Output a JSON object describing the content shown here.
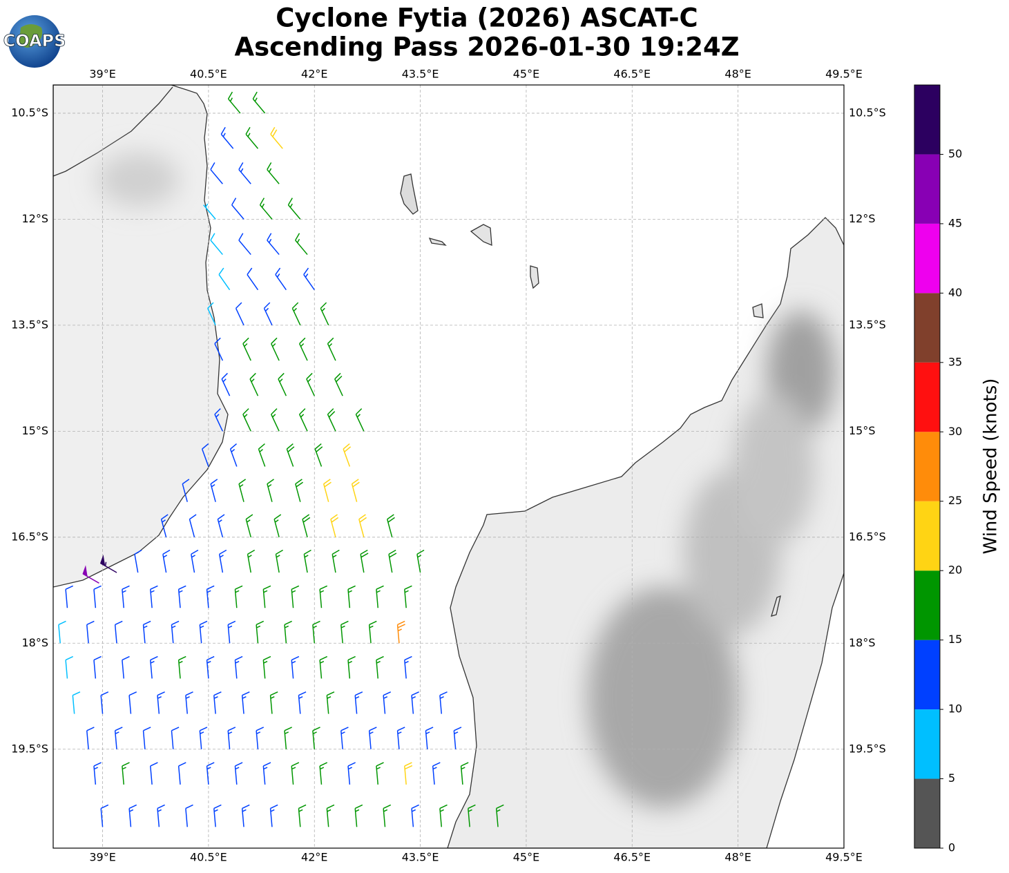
{
  "title_lines": [
    "Cyclone Fytia (2026) ASCAT-C",
    "Ascending Pass 2026-01-30 19:24Z"
  ],
  "logo_text": "COAPS",
  "map": {
    "xlim": [
      38.3,
      49.5
    ],
    "ylim": [
      -20.9,
      -10.1
    ],
    "grid": true,
    "xticks": [
      {
        "value": 39,
        "label": "39°E"
      },
      {
        "value": 40.5,
        "label": "40.5°E"
      },
      {
        "value": 42,
        "label": "42°E"
      },
      {
        "value": 43.5,
        "label": "43.5°E"
      },
      {
        "value": 45,
        "label": "45°E"
      },
      {
        "value": 46.5,
        "label": "46.5°E"
      },
      {
        "value": 48,
        "label": "48°E"
      },
      {
        "value": 49.5,
        "label": "49.5°E"
      }
    ],
    "yticks": [
      {
        "value": -10.5,
        "label": "10.5°S"
      },
      {
        "value": -12,
        "label": "12°S"
      },
      {
        "value": -13.5,
        "label": "13.5°S"
      },
      {
        "value": -15,
        "label": "15°S"
      },
      {
        "value": -16.5,
        "label": "16.5°S"
      },
      {
        "value": -18,
        "label": "18°S"
      },
      {
        "value": -19.5,
        "label": "19.5°S"
      }
    ],
    "wind_barbs": [
      [
        40.95,
        -10.5,
        17,
        320
      ],
      [
        41.3,
        -10.5,
        17,
        320
      ],
      [
        40.85,
        -11.0,
        13,
        320
      ],
      [
        41.2,
        -11.0,
        16,
        320
      ],
      [
        41.55,
        -11.0,
        21,
        320
      ],
      [
        40.7,
        -11.5,
        12,
        320
      ],
      [
        41.1,
        -11.5,
        14,
        320
      ],
      [
        41.5,
        -11.5,
        17,
        320
      ],
      [
        40.6,
        -12.0,
        7,
        320
      ],
      [
        41.0,
        -12.0,
        12,
        320
      ],
      [
        41.4,
        -12.0,
        16,
        320
      ],
      [
        41.8,
        -12.0,
        17,
        320
      ],
      [
        40.7,
        -12.5,
        8,
        320
      ],
      [
        41.1,
        -12.5,
        12,
        320
      ],
      [
        41.5,
        -12.5,
        14,
        320
      ],
      [
        41.9,
        -12.5,
        17,
        320
      ],
      [
        40.8,
        -13.0,
        8,
        325
      ],
      [
        41.2,
        -13.0,
        12,
        325
      ],
      [
        41.6,
        -13.0,
        13,
        325
      ],
      [
        42.0,
        -13.0,
        13,
        325
      ],
      [
        40.6,
        -13.5,
        8,
        335
      ],
      [
        41.0,
        -13.5,
        12,
        335
      ],
      [
        41.4,
        -13.5,
        14,
        335
      ],
      [
        41.8,
        -13.5,
        16,
        335
      ],
      [
        42.2,
        -13.5,
        17,
        335
      ],
      [
        40.7,
        -14.0,
        12,
        335
      ],
      [
        41.1,
        -14.0,
        16,
        335
      ],
      [
        41.5,
        -14.0,
        16,
        335
      ],
      [
        41.9,
        -14.0,
        17,
        335
      ],
      [
        42.3,
        -14.0,
        17,
        335
      ],
      [
        40.8,
        -14.5,
        13,
        335
      ],
      [
        41.2,
        -14.5,
        16,
        335
      ],
      [
        41.6,
        -14.5,
        17,
        335
      ],
      [
        42.0,
        -14.5,
        17,
        335
      ],
      [
        42.4,
        -14.5,
        18,
        335
      ],
      [
        40.7,
        -15.0,
        13,
        335
      ],
      [
        41.1,
        -15.0,
        16,
        335
      ],
      [
        41.5,
        -15.0,
        17,
        335
      ],
      [
        41.9,
        -15.0,
        17,
        335
      ],
      [
        42.3,
        -15.0,
        18,
        335
      ],
      [
        42.7,
        -15.0,
        17,
        335
      ],
      [
        40.5,
        -15.5,
        12,
        340
      ],
      [
        40.9,
        -15.5,
        14,
        340
      ],
      [
        41.3,
        -15.5,
        17,
        340
      ],
      [
        41.7,
        -15.5,
        18,
        340
      ],
      [
        42.1,
        -15.5,
        19,
        340
      ],
      [
        42.5,
        -15.5,
        21,
        340
      ],
      [
        40.2,
        -16.0,
        12,
        345
      ],
      [
        40.6,
        -16.0,
        13,
        345
      ],
      [
        41.0,
        -16.0,
        16,
        345
      ],
      [
        41.4,
        -16.0,
        17,
        345
      ],
      [
        41.8,
        -16.0,
        18,
        345
      ],
      [
        42.2,
        -16.0,
        21,
        345
      ],
      [
        42.6,
        -16.0,
        22,
        345
      ],
      [
        39.9,
        -16.5,
        13,
        345
      ],
      [
        40.3,
        -16.5,
        12,
        345
      ],
      [
        40.7,
        -16.5,
        14,
        345
      ],
      [
        41.1,
        -16.5,
        17,
        345
      ],
      [
        41.5,
        -16.5,
        17,
        345
      ],
      [
        41.9,
        -16.5,
        18,
        345
      ],
      [
        42.3,
        -16.5,
        21,
        345
      ],
      [
        42.7,
        -16.5,
        22,
        345
      ],
      [
        43.1,
        -16.5,
        18,
        345
      ],
      [
        38.95,
        -17.15,
        48,
        300
      ],
      [
        39.2,
        -17.0,
        53,
        300
      ],
      [
        39.5,
        -17.0,
        12,
        350
      ],
      [
        39.9,
        -17.0,
        14,
        350
      ],
      [
        40.3,
        -17.0,
        13,
        350
      ],
      [
        40.7,
        -17.0,
        14,
        350
      ],
      [
        41.1,
        -17.0,
        17,
        350
      ],
      [
        41.5,
        -17.0,
        17,
        350
      ],
      [
        41.9,
        -17.0,
        16,
        350
      ],
      [
        42.3,
        -17.0,
        17,
        350
      ],
      [
        42.7,
        -17.0,
        18,
        350
      ],
      [
        43.1,
        -17.0,
        18,
        350
      ],
      [
        43.5,
        -17.0,
        17,
        350
      ],
      [
        38.5,
        -17.5,
        12,
        355
      ],
      [
        38.9,
        -17.5,
        12,
        355
      ],
      [
        39.3,
        -17.5,
        13,
        355
      ],
      [
        39.7,
        -17.5,
        13,
        355
      ],
      [
        40.1,
        -17.5,
        14,
        355
      ],
      [
        40.5,
        -17.5,
        13,
        355
      ],
      [
        40.9,
        -17.5,
        16,
        355
      ],
      [
        41.3,
        -17.5,
        17,
        355
      ],
      [
        41.7,
        -17.5,
        16,
        355
      ],
      [
        42.1,
        -17.5,
        16,
        355
      ],
      [
        42.5,
        -17.5,
        17,
        355
      ],
      [
        42.9,
        -17.5,
        17,
        355
      ],
      [
        43.3,
        -17.5,
        17,
        355
      ],
      [
        38.4,
        -18.0,
        8,
        355
      ],
      [
        38.8,
        -18.0,
        12,
        355
      ],
      [
        39.2,
        -18.0,
        12,
        355
      ],
      [
        39.6,
        -18.0,
        13,
        355
      ],
      [
        40.0,
        -18.0,
        14,
        355
      ],
      [
        40.4,
        -18.0,
        13,
        355
      ],
      [
        40.8,
        -18.0,
        14,
        355
      ],
      [
        41.2,
        -18.0,
        16,
        355
      ],
      [
        41.6,
        -18.0,
        16,
        355
      ],
      [
        42.0,
        -18.0,
        16,
        355
      ],
      [
        42.4,
        -18.0,
        17,
        355
      ],
      [
        42.8,
        -18.0,
        17,
        355
      ],
      [
        43.2,
        -18.0,
        26,
        355
      ],
      [
        38.5,
        -18.5,
        8,
        355
      ],
      [
        38.9,
        -18.5,
        12,
        355
      ],
      [
        39.3,
        -18.5,
        12,
        355
      ],
      [
        39.7,
        -18.5,
        13,
        355
      ],
      [
        40.1,
        -18.5,
        17,
        355
      ],
      [
        40.5,
        -18.5,
        14,
        355
      ],
      [
        40.9,
        -18.5,
        13,
        355
      ],
      [
        41.3,
        -18.5,
        16,
        355
      ],
      [
        41.7,
        -18.5,
        14,
        355
      ],
      [
        42.1,
        -18.5,
        16,
        355
      ],
      [
        42.5,
        -18.5,
        17,
        355
      ],
      [
        42.9,
        -18.5,
        17,
        355
      ],
      [
        43.3,
        -18.5,
        13,
        355
      ],
      [
        38.6,
        -19.0,
        8,
        355
      ],
      [
        39.0,
        -19.0,
        12,
        355
      ],
      [
        39.4,
        -19.0,
        12,
        355
      ],
      [
        39.8,
        -19.0,
        13,
        355
      ],
      [
        40.2,
        -19.0,
        14,
        355
      ],
      [
        40.6,
        -19.0,
        13,
        355
      ],
      [
        41.0,
        -19.0,
        14,
        355
      ],
      [
        41.4,
        -19.0,
        16,
        355
      ],
      [
        41.8,
        -19.0,
        14,
        355
      ],
      [
        42.2,
        -19.0,
        16,
        355
      ],
      [
        42.6,
        -19.0,
        13,
        355
      ],
      [
        43.0,
        -19.0,
        13,
        355
      ],
      [
        43.4,
        -19.0,
        13,
        355
      ],
      [
        43.8,
        -19.0,
        13,
        355
      ],
      [
        38.8,
        -19.5,
        12,
        355
      ],
      [
        39.2,
        -19.5,
        13,
        355
      ],
      [
        39.6,
        -19.5,
        12,
        355
      ],
      [
        40.0,
        -19.5,
        12,
        355
      ],
      [
        40.4,
        -19.5,
        13,
        355
      ],
      [
        40.8,
        -19.5,
        13,
        355
      ],
      [
        41.2,
        -19.5,
        13,
        355
      ],
      [
        41.6,
        -19.5,
        16,
        355
      ],
      [
        42.0,
        -19.5,
        16,
        355
      ],
      [
        42.4,
        -19.5,
        13,
        355
      ],
      [
        42.8,
        -19.5,
        13,
        355
      ],
      [
        43.2,
        -19.5,
        13,
        355
      ],
      [
        43.6,
        -19.5,
        13,
        355
      ],
      [
        44.0,
        -19.5,
        13,
        355
      ],
      [
        38.9,
        -20.0,
        13,
        355
      ],
      [
        39.3,
        -20.0,
        16,
        355
      ],
      [
        39.7,
        -20.0,
        12,
        355
      ],
      [
        40.1,
        -20.0,
        12,
        355
      ],
      [
        40.5,
        -20.0,
        13,
        355
      ],
      [
        40.9,
        -20.0,
        13,
        355
      ],
      [
        41.3,
        -20.0,
        13,
        355
      ],
      [
        41.7,
        -20.0,
        16,
        355
      ],
      [
        42.1,
        -20.0,
        16,
        355
      ],
      [
        42.5,
        -20.0,
        13,
        355
      ],
      [
        42.9,
        -20.0,
        16,
        355
      ],
      [
        43.3,
        -20.0,
        21,
        355
      ],
      [
        43.7,
        -20.0,
        13,
        355
      ],
      [
        44.1,
        -20.0,
        16,
        355
      ],
      [
        39.0,
        -20.6,
        12,
        355
      ],
      [
        39.4,
        -20.6,
        13,
        355
      ],
      [
        39.8,
        -20.6,
        13,
        355
      ],
      [
        40.2,
        -20.6,
        12,
        355
      ],
      [
        40.6,
        -20.6,
        13,
        355
      ],
      [
        41.0,
        -20.6,
        13,
        355
      ],
      [
        41.4,
        -20.6,
        13,
        355
      ],
      [
        41.8,
        -20.6,
        16,
        355
      ],
      [
        42.2,
        -20.6,
        16,
        355
      ],
      [
        42.6,
        -20.6,
        16,
        355
      ],
      [
        43.0,
        -20.6,
        16,
        355
      ],
      [
        43.4,
        -20.6,
        13,
        355
      ],
      [
        43.8,
        -20.6,
        16,
        355
      ],
      [
        44.2,
        -20.6,
        16,
        355
      ],
      [
        44.6,
        -20.6,
        16,
        355
      ]
    ]
  },
  "colorbar": {
    "label": "Wind Speed (knots)",
    "ylim": [
      0,
      55
    ],
    "bounds": [
      0,
      5,
      10,
      15,
      20,
      25,
      30,
      35,
      40,
      45,
      50,
      55
    ],
    "colors": [
      "#555555",
      "#00bfff",
      "#0040ff",
      "#009600",
      "#ffd414",
      "#ff8c0a",
      "#ff1010",
      "#80402c",
      "#ee00ee",
      "#8800b4",
      "#2c0060"
    ],
    "yticks": [
      0,
      5,
      10,
      15,
      20,
      25,
      30,
      35,
      40,
      45,
      50
    ]
  }
}
